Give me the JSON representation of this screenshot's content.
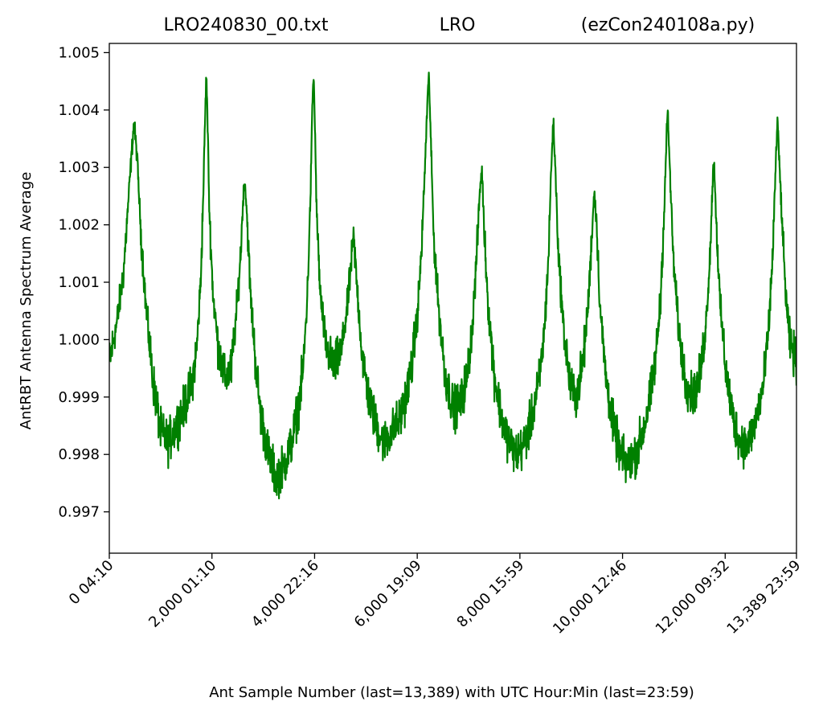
{
  "chart_data": {
    "type": "line",
    "title_parts": [
      "LRO240830_00.txt",
      "LRO",
      "(ezCon240108a.py)"
    ],
    "xlabel": "Ant Sample Number (last=13,389) with UTC Hour:Min (last=23:59)",
    "ylabel": "AntRBT Antenna Spectrum Average",
    "xlim": [
      0,
      13389
    ],
    "ylim": [
      0.99628,
      1.00516
    ],
    "x_ticks": [
      {
        "value": 0,
        "label": "0  04:10"
      },
      {
        "value": 2000,
        "label": "2,000  01:10"
      },
      {
        "value": 4000,
        "label": "4,000  22:16"
      },
      {
        "value": 6000,
        "label": "6,000  19:09"
      },
      {
        "value": 8000,
        "label": "8,000  15:59"
      },
      {
        "value": 10000,
        "label": "10,000  12:46"
      },
      {
        "value": 12000,
        "label": "12,000  09:32"
      },
      {
        "value": 13389,
        "label": "13,389  23:59"
      }
    ],
    "y_ticks": [
      {
        "value": 0.997,
        "label": "0.997"
      },
      {
        "value": 0.998,
        "label": "0.998"
      },
      {
        "value": 0.999,
        "label": "0.999"
      },
      {
        "value": 1.0,
        "label": "1.000"
      },
      {
        "value": 1.001,
        "label": "1.001"
      },
      {
        "value": 1.002,
        "label": "1.002"
      },
      {
        "value": 1.003,
        "label": "1.003"
      },
      {
        "value": 1.004,
        "label": "1.004"
      },
      {
        "value": 1.005,
        "label": "1.005"
      }
    ],
    "grid": false,
    "series": [
      {
        "color": "#008000",
        "points": [
          [
            0,
            0.9996
          ],
          [
            150,
            1.0003
          ],
          [
            280,
            1.0012
          ],
          [
            400,
            1.0028
          ],
          [
            480,
            1.0038
          ],
          [
            540,
            1.0032
          ],
          [
            620,
            1.0018
          ],
          [
            720,
            1.0005
          ],
          [
            850,
            0.9993
          ],
          [
            1000,
            0.9984
          ],
          [
            1150,
            0.9982
          ],
          [
            1300,
            0.9985
          ],
          [
            1450,
            0.9988
          ],
          [
            1600,
            0.9992
          ],
          [
            1700,
            0.9998
          ],
          [
            1780,
            1.001
          ],
          [
            1830,
            1.0025
          ],
          [
            1870,
            1.004
          ],
          [
            1890,
            1.0046
          ],
          [
            1910,
            1.004
          ],
          [
            1950,
            1.0022
          ],
          [
            2020,
            1.0008
          ],
          [
            2120,
            0.9999
          ],
          [
            2250,
            0.9993
          ],
          [
            2380,
            0.9995
          ],
          [
            2480,
            1.0005
          ],
          [
            2560,
            1.0015
          ],
          [
            2610,
            1.0025
          ],
          [
            2640,
            1.0028
          ],
          [
            2680,
            1.0022
          ],
          [
            2750,
            1.0008
          ],
          [
            2850,
            0.9996
          ],
          [
            2950,
            0.9987
          ],
          [
            3100,
            0.998
          ],
          [
            3250,
            0.9976
          ],
          [
            3400,
            0.9978
          ],
          [
            3550,
            0.9982
          ],
          [
            3680,
            0.9988
          ],
          [
            3780,
            0.9995
          ],
          [
            3860,
            1.0008
          ],
          [
            3920,
            1.0025
          ],
          [
            3960,
            1.0042
          ],
          [
            3980,
            1.0046
          ],
          [
            4000,
            1.004
          ],
          [
            4040,
            1.0022
          ],
          [
            4110,
            1.0008
          ],
          [
            4220,
            0.9999
          ],
          [
            4370,
            0.9995
          ],
          [
            4520,
            0.9998
          ],
          [
            4630,
            1.0005
          ],
          [
            4700,
            1.0012
          ],
          [
            4760,
            1.0018
          ],
          [
            4820,
            1.001
          ],
          [
            4920,
            0.9998
          ],
          [
            5050,
            0.999
          ],
          [
            5200,
            0.9985
          ],
          [
            5350,
            0.9982
          ],
          [
            5500,
            0.9984
          ],
          [
            5650,
            0.9986
          ],
          [
            5780,
            0.999
          ],
          [
            5900,
            0.9996
          ],
          [
            6000,
            1.0004
          ],
          [
            6080,
            1.0015
          ],
          [
            6150,
            1.003
          ],
          [
            6200,
            1.0042
          ],
          [
            6230,
            1.0046
          ],
          [
            6260,
            1.0036
          ],
          [
            6320,
            1.0018
          ],
          [
            6420,
            1.0005
          ],
          [
            6540,
            0.9994
          ],
          [
            6700,
            0.9988
          ],
          [
            6850,
            0.9989
          ],
          [
            6980,
            0.9994
          ],
          [
            7080,
            1.0003
          ],
          [
            7160,
            1.0015
          ],
          [
            7220,
            1.0026
          ],
          [
            7260,
            1.003
          ],
          [
            7300,
            1.002
          ],
          [
            7380,
            1.0006
          ],
          [
            7500,
            0.9994
          ],
          [
            7650,
            0.9986
          ],
          [
            7800,
            0.9982
          ],
          [
            7950,
            0.998
          ],
          [
            8100,
            0.9982
          ],
          [
            8250,
            0.9987
          ],
          [
            8380,
            0.9993
          ],
          [
            8480,
            1.0002
          ],
          [
            8560,
            1.0015
          ],
          [
            8610,
            1.003
          ],
          [
            8650,
            1.0038
          ],
          [
            8690,
            1.003
          ],
          [
            8750,
            1.0015
          ],
          [
            8850,
            1.0002
          ],
          [
            8980,
            0.9992
          ],
          [
            9100,
            0.999
          ],
          [
            9230,
            0.9996
          ],
          [
            9330,
            1.0006
          ],
          [
            9400,
            1.0018
          ],
          [
            9450,
            1.0026
          ],
          [
            9490,
            1.0021
          ],
          [
            9560,
            1.0006
          ],
          [
            9680,
            0.9993
          ],
          [
            9820,
            0.9985
          ],
          [
            9960,
            0.998
          ],
          [
            10100,
            0.9978
          ],
          [
            10250,
            0.998
          ],
          [
            10400,
            0.9984
          ],
          [
            10540,
            0.999
          ],
          [
            10650,
            0.9997
          ],
          [
            10740,
            1.0007
          ],
          [
            10810,
            1.0022
          ],
          [
            10860,
            1.0036
          ],
          [
            10880,
            1.004
          ],
          [
            10920,
            1.003
          ],
          [
            10990,
            1.0014
          ],
          [
            11090,
            1.0002
          ],
          [
            11220,
            0.9993
          ],
          [
            11360,
            0.999
          ],
          [
            11500,
            0.9993
          ],
          [
            11620,
            1.0002
          ],
          [
            11700,
            1.0014
          ],
          [
            11750,
            1.0026
          ],
          [
            11780,
            1.0032
          ],
          [
            11820,
            1.0022
          ],
          [
            11900,
            1.0006
          ],
          [
            12020,
            0.9994
          ],
          [
            12160,
            0.9986
          ],
          [
            12300,
            0.9982
          ],
          [
            12450,
            0.9982
          ],
          [
            12600,
            0.9986
          ],
          [
            12740,
            0.9992
          ],
          [
            12850,
            1.0002
          ],
          [
            12930,
            1.0016
          ],
          [
            12990,
            1.0032
          ],
          [
            13020,
            1.0038
          ],
          [
            13060,
            1.003
          ],
          [
            13120,
            1.0018
          ],
          [
            13180,
            1.0008
          ],
          [
            13250,
            1.0
          ],
          [
            13320,
            0.9998
          ],
          [
            13389,
            0.9996
          ]
        ],
        "noise": 0.00055
      }
    ]
  }
}
